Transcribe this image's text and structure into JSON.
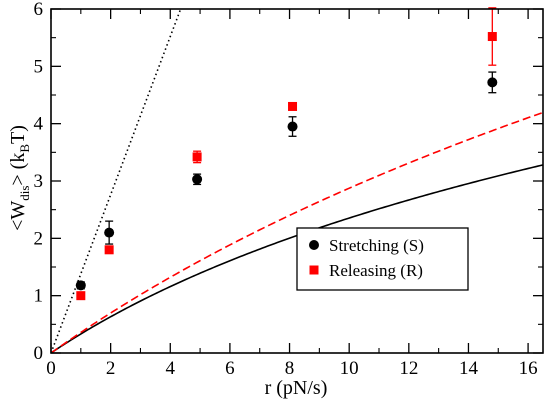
{
  "chart_data": {
    "type": "scatter",
    "xlabel": "r (pN/s)",
    "ylabel": {
      "base": "<W",
      "sub": "dis",
      "mid": "> (k",
      "sub2": "B",
      "end": "T)"
    },
    "xlim": [
      0,
      16.5
    ],
    "ylim": [
      0,
      6
    ],
    "xticks": [
      "0",
      "2",
      "4",
      "6",
      "8",
      "10",
      "12",
      "14",
      "16"
    ],
    "xtick_values": [
      0,
      2,
      4,
      6,
      8,
      10,
      12,
      14,
      16
    ],
    "yticks": [
      "0",
      "1",
      "2",
      "3",
      "4",
      "5",
      "6"
    ],
    "ytick_values": [
      0,
      1,
      2,
      3,
      4,
      5,
      6
    ],
    "grid": false,
    "legend_position": "center-right",
    "series": [
      {
        "name": "Stretching (S)",
        "marker": "circle",
        "color": "#000000",
        "points": [
          {
            "x": 1.0,
            "y": 1.18,
            "err": 0.06
          },
          {
            "x": 1.95,
            "y": 2.1,
            "err": 0.2
          },
          {
            "x": 4.9,
            "y": 3.03,
            "err": 0.09
          },
          {
            "x": 8.1,
            "y": 3.95,
            "err": 0.17
          },
          {
            "x": 14.8,
            "y": 4.72,
            "err": 0.18
          }
        ]
      },
      {
        "name": "Releasing (R)",
        "marker": "square",
        "color": "#ff0000",
        "points": [
          {
            "x": 1.0,
            "y": 1.0,
            "err": 0.03
          },
          {
            "x": 1.95,
            "y": 1.8,
            "err": 0.05
          },
          {
            "x": 4.9,
            "y": 3.42,
            "err": 0.1
          },
          {
            "x": 8.1,
            "y": 4.3,
            "err": 0.04
          },
          {
            "x": 14.8,
            "y": 5.52,
            "err": 0.5
          }
        ]
      }
    ],
    "fits": [
      {
        "style": "solid",
        "color": "#000000",
        "a": 0.35,
        "b": 9.0
      },
      {
        "style": "dashed",
        "color": "#ff0000",
        "a": 0.37,
        "b": 16.0
      },
      {
        "style": "dotted",
        "color": "#000000",
        "slope": 1.38
      }
    ]
  }
}
